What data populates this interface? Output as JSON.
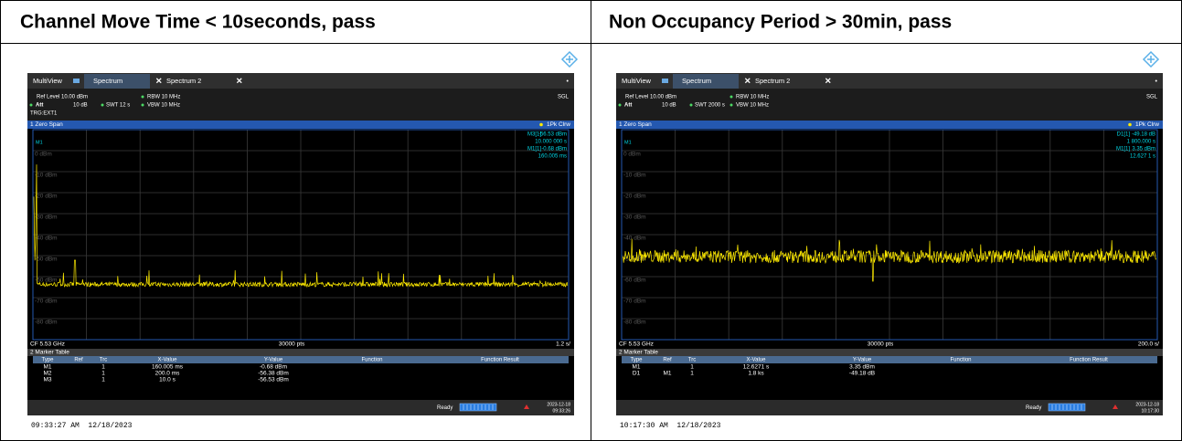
{
  "header": {
    "left": "Channel Move Time < 10seconds, pass",
    "right": "Non Occupancy Period > 30min, pass"
  },
  "panels": [
    {
      "tabs": [
        "MultiView",
        "Spectrum",
        "Spectrum 2"
      ],
      "settings": {
        "ref_level": "Ref Level 10.00 dBm",
        "rbw": "RBW 10 MHz",
        "att": "Att",
        "att_value": "10 dB",
        "swt": "SWT 12 s",
        "vbw": "VBW 10 MHz",
        "mode": "SGL",
        "trigger": "TRG:EXT1"
      },
      "window": {
        "title": "1 Zero Span",
        "trace": "1Pk Clrw"
      },
      "y_labels": [
        "0 dBm",
        "-10 dBm",
        "-20 dBm",
        "-30 dBm",
        "-40 dBm",
        "-50 dBm",
        "-60 dBm",
        "-70 dBm",
        "-80 dBm"
      ],
      "plot_marker": "M1",
      "readouts": [
        {
          "label": "M3[1]",
          "value": "-56.53 dBm",
          "position": "10.000 000 s"
        },
        {
          "label": "M1[1]",
          "value": "-0.68 dBm",
          "position": "160.005 ms"
        }
      ],
      "footer": {
        "center_freq": "CF 5.53 GHz",
        "points": "30000 pts",
        "scale": "1.2 s/"
      },
      "marker_table": {
        "title": "2 Marker Table",
        "columns": [
          "Type",
          "Ref",
          "Trc",
          "X-Value",
          "Y-Value",
          "Function",
          "Function Result"
        ],
        "rows": [
          {
            "type": "M1",
            "trc": "1",
            "x": "160.005 ms",
            "y": "-0.68 dBm"
          },
          {
            "type": "M2",
            "trc": "1",
            "x": "200.0 ms",
            "y": "-56.38 dBm"
          },
          {
            "type": "M3",
            "trc": "1",
            "x": "10.0 s",
            "y": "-56.53 dBm"
          }
        ]
      },
      "status": {
        "state": "Ready",
        "date": "2023-12-18",
        "time": "09:33:26"
      },
      "timestamp": "09:33:27 AM  12/18/2023"
    },
    {
      "tabs": [
        "MultiView",
        "Spectrum",
        "Spectrum 2"
      ],
      "settings": {
        "ref_level": "Ref Level 10.00 dBm",
        "rbw": "RBW 10 MHz",
        "att": "Att",
        "att_value": "10 dB",
        "swt": "SWT 2000 s",
        "vbw": "VBW 10 MHz",
        "mode": "SGL"
      },
      "window": {
        "title": "1 Zero Span",
        "trace": "1Pk Clrw"
      },
      "y_labels": [
        "0 dBm",
        "-10 dBm",
        "-20 dBm",
        "-30 dBm",
        "-40 dBm",
        "-50 dBm",
        "-60 dBm",
        "-70 dBm",
        "-80 dBm"
      ],
      "plot_marker": "M1",
      "readouts": [
        {
          "label": "D1[1]",
          "value": "-49.18 dB",
          "position": "1 800.000 s"
        },
        {
          "label": "M1[1]",
          "value": "3.35 dBm",
          "position": "12.627 1 s"
        }
      ],
      "footer": {
        "center_freq": "CF 5.53 GHz",
        "points": "30000 pts",
        "scale": "200.0 s/"
      },
      "marker_table": {
        "title": "2 Marker Table",
        "columns": [
          "Type",
          "Ref",
          "Trc",
          "X-Value",
          "Y-Value",
          "Function",
          "Function Result"
        ],
        "rows": [
          {
            "type": "M1",
            "trc": "1",
            "x": "12.6271 s",
            "y": "3.35 dBm"
          },
          {
            "type": "D1",
            "ref": "M1",
            "trc": "1",
            "x": "1.8 ks",
            "y": "-49.18 dB"
          }
        ]
      },
      "status": {
        "state": "Ready",
        "date": "2023-12-18",
        "time": "10:17:30"
      },
      "timestamp": "10:17:30 AM  12/18/2023"
    }
  ]
}
